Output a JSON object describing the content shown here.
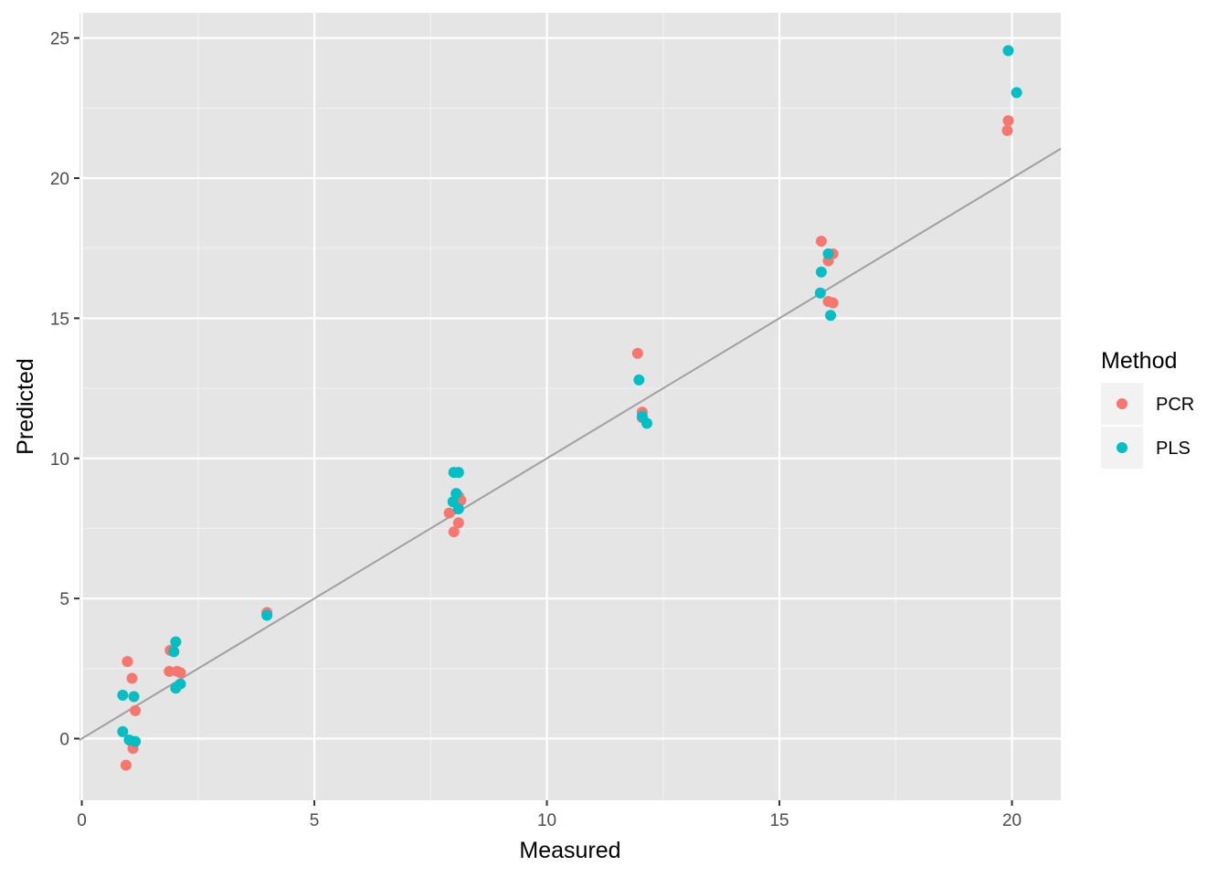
{
  "chart_data": {
    "type": "scatter",
    "xlabel": "Measured",
    "ylabel": "Predicted",
    "xlim": [
      -0.05,
      21.05
    ],
    "ylim": [
      -2.2,
      25.9
    ],
    "x_ticks": [
      0,
      5,
      10,
      15,
      20
    ],
    "y_ticks": [
      0,
      5,
      10,
      15,
      20,
      25
    ],
    "x_tick_labels": [
      "0",
      "5",
      "10",
      "15",
      "20"
    ],
    "y_tick_labels": [
      "0",
      "5",
      "10",
      "15",
      "20",
      "25"
    ],
    "grid": true,
    "reference_line": {
      "slope": 1,
      "intercept": 0,
      "color": "#a0a0a0"
    },
    "legend": {
      "title": "Method",
      "position": "right"
    },
    "series": [
      {
        "name": "PCR",
        "color": "#f8766d",
        "points": [
          [
            0.98,
            2.75
          ],
          [
            1.08,
            2.15
          ],
          [
            1.15,
            1.0
          ],
          [
            1.1,
            -0.35
          ],
          [
            0.95,
            -0.95
          ],
          [
            1.9,
            3.15
          ],
          [
            1.88,
            2.4
          ],
          [
            2.05,
            2.4
          ],
          [
            2.12,
            2.35
          ],
          [
            3.98,
            4.5
          ],
          [
            7.9,
            8.05
          ],
          [
            8.0,
            7.38
          ],
          [
            8.1,
            7.7
          ],
          [
            8.1,
            8.65
          ],
          [
            8.15,
            8.5
          ],
          [
            11.95,
            13.75
          ],
          [
            12.05,
            11.65
          ],
          [
            12.05,
            11.45
          ],
          [
            15.9,
            17.75
          ],
          [
            16.05,
            17.05
          ],
          [
            16.15,
            17.3
          ],
          [
            16.05,
            15.6
          ],
          [
            16.15,
            15.55
          ],
          [
            19.92,
            22.05
          ],
          [
            19.9,
            21.7
          ]
        ]
      },
      {
        "name": "PLS",
        "color": "#00bfc4",
        "points": [
          [
            0.88,
            1.55
          ],
          [
            1.12,
            1.5
          ],
          [
            0.88,
            0.25
          ],
          [
            1.02,
            -0.05
          ],
          [
            1.15,
            -0.1
          ],
          [
            2.02,
            3.45
          ],
          [
            1.98,
            3.1
          ],
          [
            2.02,
            1.8
          ],
          [
            2.12,
            1.95
          ],
          [
            3.98,
            4.4
          ],
          [
            8.0,
            9.5
          ],
          [
            8.1,
            9.5
          ],
          [
            8.05,
            8.75
          ],
          [
            7.98,
            8.45
          ],
          [
            8.1,
            8.2
          ],
          [
            11.98,
            12.8
          ],
          [
            12.05,
            11.5
          ],
          [
            12.15,
            11.25
          ],
          [
            16.05,
            17.3
          ],
          [
            15.9,
            16.65
          ],
          [
            15.88,
            15.9
          ],
          [
            16.1,
            15.1
          ],
          [
            19.92,
            24.55
          ],
          [
            20.1,
            23.05
          ]
        ]
      }
    ]
  }
}
